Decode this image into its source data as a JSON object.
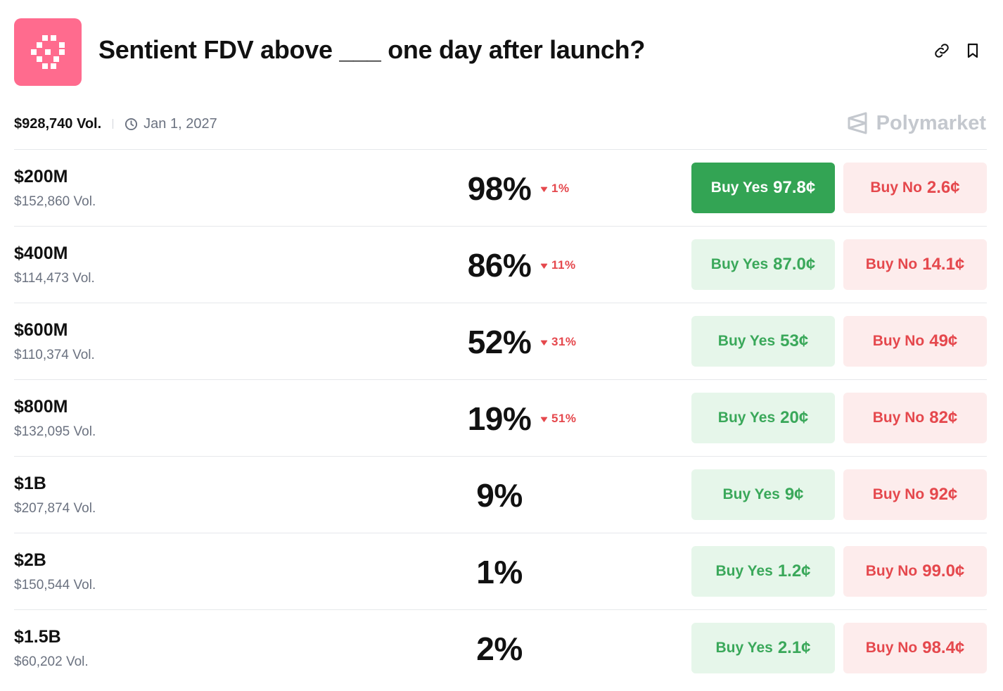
{
  "app": {
    "title": "Sentient FDV above ___ one day after launch?",
    "brand": "Polymarket",
    "accent_color": "#ff6b8e",
    "icons": [
      "sentient-logo",
      "link-icon",
      "bookmark-icon",
      "clock-icon",
      "polymarket-logo"
    ]
  },
  "meta": {
    "volume": "$928,740 Vol.",
    "end_date": "Jan 1, 2027"
  },
  "colors": {
    "yes": "#3aa85a",
    "yes_active_bg": "#33a454",
    "yes_bg": "#e6f6ea",
    "no": "#e5484d",
    "no_bg": "#fdecec"
  },
  "outcomes": [
    {
      "label": "$200M",
      "volume": "$152,860 Vol.",
      "percent": "98%",
      "change": "1%",
      "yes_label": "Buy Yes",
      "yes_price": "97.8¢",
      "no_label": "Buy No",
      "no_price": "2.6¢",
      "yes_active": true
    },
    {
      "label": "$400M",
      "volume": "$114,473 Vol.",
      "percent": "86%",
      "change": "11%",
      "yes_label": "Buy Yes",
      "yes_price": "87.0¢",
      "no_label": "Buy No",
      "no_price": "14.1¢",
      "yes_active": false
    },
    {
      "label": "$600M",
      "volume": "$110,374 Vol.",
      "percent": "52%",
      "change": "31%",
      "yes_label": "Buy Yes",
      "yes_price": "53¢",
      "no_label": "Buy No",
      "no_price": "49¢",
      "yes_active": false
    },
    {
      "label": "$800M",
      "volume": "$132,095 Vol.",
      "percent": "19%",
      "change": "51%",
      "yes_label": "Buy Yes",
      "yes_price": "20¢",
      "no_label": "Buy No",
      "no_price": "82¢",
      "yes_active": false
    },
    {
      "label": "$1B",
      "volume": "$207,874 Vol.",
      "percent": "9%",
      "change": "",
      "yes_label": "Buy Yes",
      "yes_price": "9¢",
      "no_label": "Buy No",
      "no_price": "92¢",
      "yes_active": false
    },
    {
      "label": "$2B",
      "volume": "$150,544 Vol.",
      "percent": "1%",
      "change": "",
      "yes_label": "Buy Yes",
      "yes_price": "1.2¢",
      "no_label": "Buy No",
      "no_price": "99.0¢",
      "yes_active": false
    },
    {
      "label": "$1.5B",
      "volume": "$60,202 Vol.",
      "percent": "2%",
      "change": "",
      "yes_label": "Buy Yes",
      "yes_price": "2.1¢",
      "no_label": "Buy No",
      "no_price": "98.4¢",
      "yes_active": false
    }
  ]
}
